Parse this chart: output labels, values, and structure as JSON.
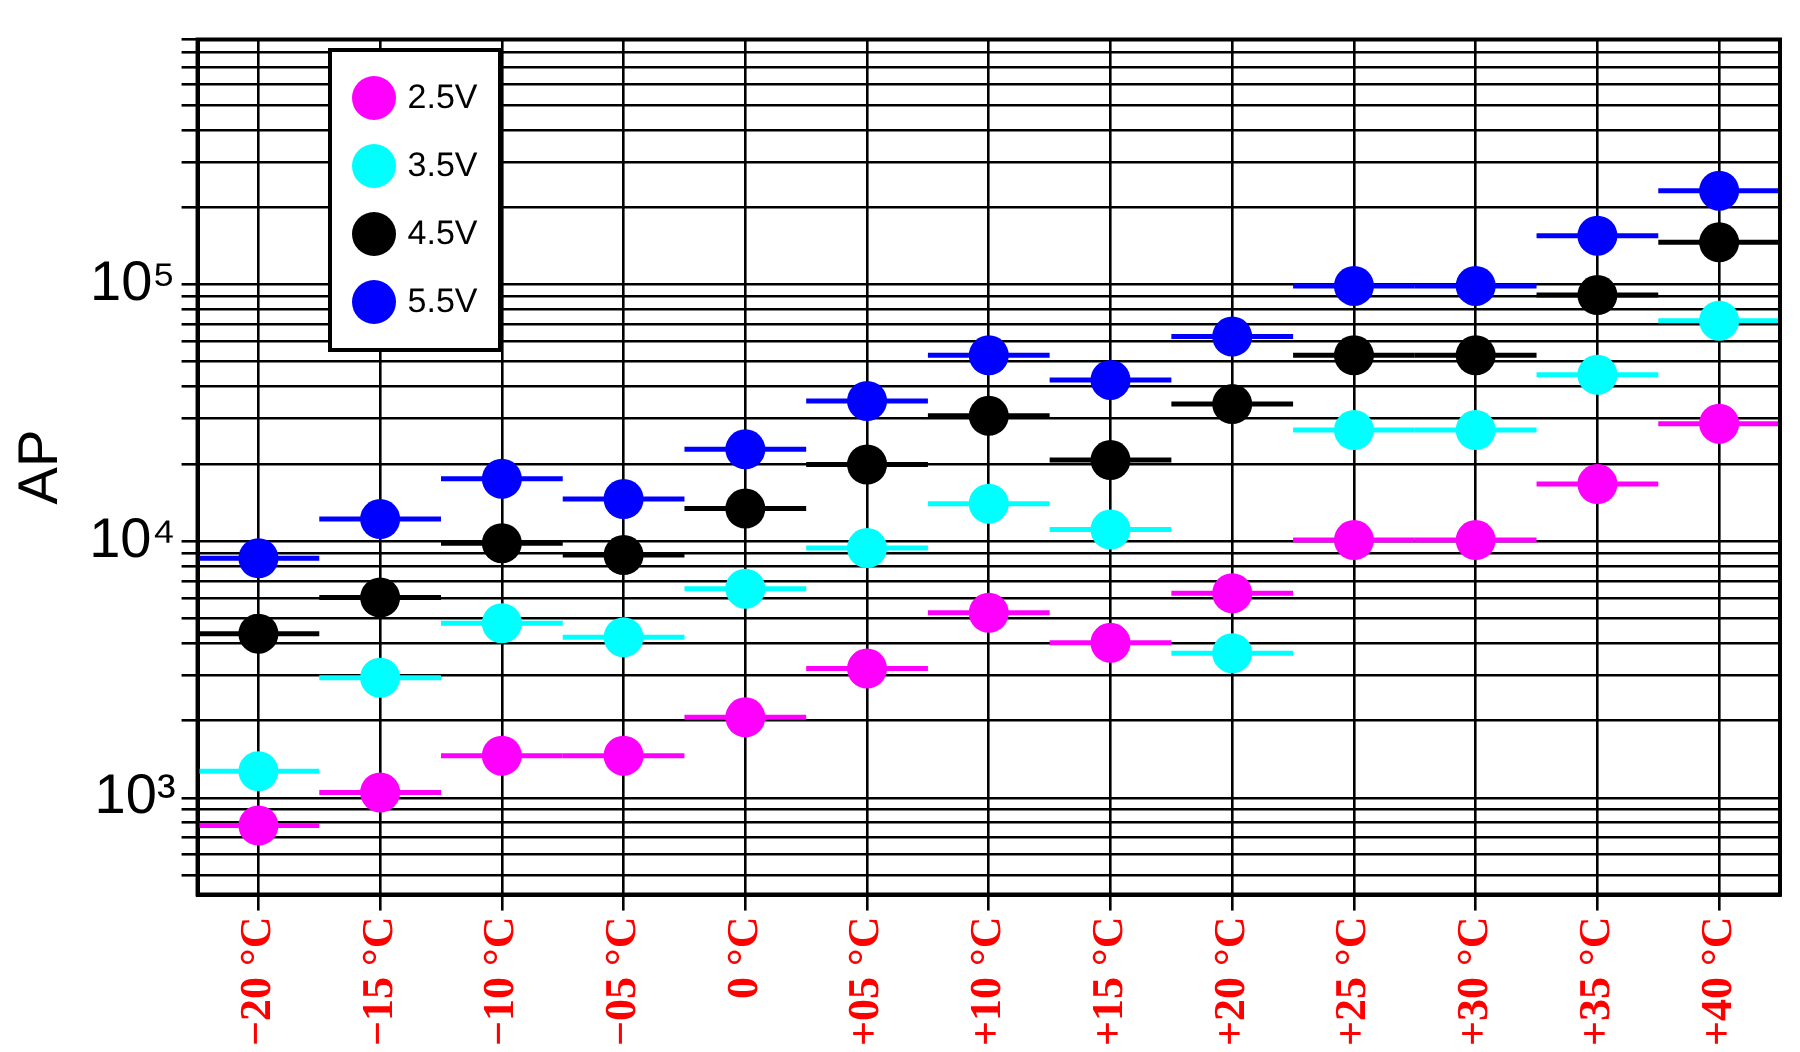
{
  "chart_data": {
    "type": "scatter",
    "ylabel": "AP",
    "x": [
      -20,
      -15,
      -10,
      -5,
      0,
      5,
      10,
      15,
      20,
      25,
      30,
      35,
      40
    ],
    "xlim": [
      -22.5,
      42.5
    ],
    "xticks": [
      {
        "value": -20,
        "label": "−20 °C"
      },
      {
        "value": -15,
        "label": "−15 °C"
      },
      {
        "value": -10,
        "label": "−10 °C"
      },
      {
        "value": -5,
        "label": "−05 °C"
      },
      {
        "value": 0,
        "label": "0 °C"
      },
      {
        "value": 5,
        "label": "+05 °C"
      },
      {
        "value": 10,
        "label": "+10 °C"
      },
      {
        "value": 15,
        "label": "+15 °C"
      },
      {
        "value": 20,
        "label": "+20 °C"
      },
      {
        "value": 25,
        "label": "+25 °C"
      },
      {
        "value": 30,
        "label": "+30 °C"
      },
      {
        "value": 35,
        "label": "+35 °C"
      },
      {
        "value": 40,
        "label": "+40 °C"
      }
    ],
    "series": [
      {
        "name": "2.5V",
        "color": "#ff00ff",
        "values": [
          780,
          1050,
          1460,
          1460,
          2060,
          3190,
          5260,
          4020,
          6270,
          10100,
          10100,
          16700,
          28700
        ],
        "xerrors": [
          2.5,
          2.5,
          2.5,
          2.5,
          2.5,
          2.5,
          2.5,
          2.5,
          2.5,
          2.5,
          2.5,
          2.5,
          2.5
        ]
      },
      {
        "name": "3.5V",
        "color": "#00ffff",
        "values": [
          1270,
          2940,
          4790,
          4220,
          6530,
          9400,
          14000,
          11100,
          3660,
          27100,
          27100,
          44500,
          72300
        ],
        "xerrors": [
          2.5,
          2.5,
          2.5,
          2.5,
          2.5,
          2.5,
          2.5,
          2.5,
          2.5,
          2.5,
          2.5,
          2.5,
          2.5
        ]
      },
      {
        "name": "4.5V",
        "color": "#000000",
        "values": [
          4360,
          6030,
          9820,
          8830,
          13400,
          19900,
          30800,
          20700,
          34200,
          53000,
          53000,
          91000,
          146000
        ],
        "xerrors": [
          2.5,
          2.5,
          2.5,
          2.5,
          2.5,
          2.5,
          2.5,
          2.5,
          2.5,
          2.5,
          2.5,
          2.5,
          2.5
        ]
      },
      {
        "name": "5.5V",
        "color": "#0000ff",
        "values": [
          8580,
          12200,
          17500,
          14600,
          22800,
          35200,
          53000,
          42500,
          62700,
          98700,
          98700,
          155000,
          232000
        ],
        "xerrors": [
          2.5,
          2.5,
          2.5,
          2.5,
          2.5,
          2.5,
          2.5,
          2.5,
          2.5,
          2.5,
          2.5,
          2.5,
          2.5
        ]
      }
    ],
    "log": "y",
    "ylim": [
      420,
      900000
    ],
    "yticks": [
      {
        "value": 500,
        "label": null
      },
      {
        "value": 600,
        "label": null
      },
      {
        "value": 700,
        "label": null
      },
      {
        "value": 800,
        "label": null
      },
      {
        "value": 900,
        "label": null
      },
      {
        "value": 1000,
        "label": "10³"
      },
      {
        "value": 2000,
        "label": null
      },
      {
        "value": 3000,
        "label": null
      },
      {
        "value": 4000,
        "label": null
      },
      {
        "value": 5000,
        "label": null
      },
      {
        "value": 6000,
        "label": null
      },
      {
        "value": 7000,
        "label": null
      },
      {
        "value": 8000,
        "label": null
      },
      {
        "value": 9000,
        "label": null
      },
      {
        "value": 10000,
        "label": "10⁴"
      },
      {
        "value": 20000,
        "label": null
      },
      {
        "value": 30000,
        "label": null
      },
      {
        "value": 40000,
        "label": null
      },
      {
        "value": 50000,
        "label": null
      },
      {
        "value": 60000,
        "label": null
      },
      {
        "value": 70000,
        "label": null
      },
      {
        "value": 80000,
        "label": null
      },
      {
        "value": 90000,
        "label": null
      },
      {
        "value": 100000,
        "label": "10⁵"
      },
      {
        "value": 200000,
        "label": null
      },
      {
        "value": 300000,
        "label": null
      },
      {
        "value": 400000,
        "label": null
      },
      {
        "value": 500000,
        "label": null
      },
      {
        "value": 600000,
        "label": null
      },
      {
        "value": 700000,
        "label": null
      },
      {
        "value": 800000,
        "label": null
      },
      {
        "value": 900000,
        "label": null
      }
    ],
    "grid": true,
    "legend": "top left",
    "marker": "circle"
  }
}
